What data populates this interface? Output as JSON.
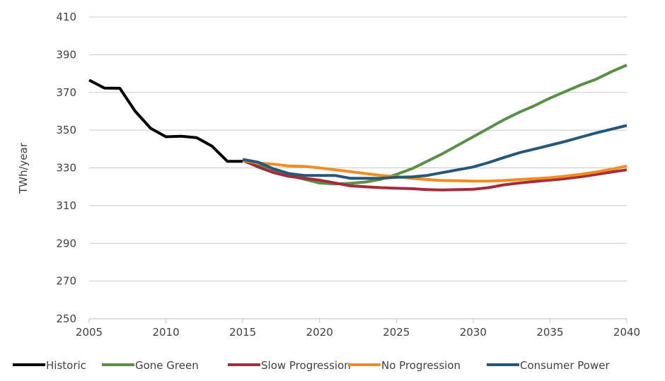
{
  "chart_data": {
    "type": "line",
    "title": "",
    "xlabel": "",
    "ylabel": "TWh/year",
    "xlim": [
      2005,
      2040
    ],
    "ylim": [
      250,
      410
    ],
    "x_ticks": [
      2005,
      2010,
      2015,
      2020,
      2025,
      2030,
      2035,
      2040
    ],
    "y_ticks": [
      250,
      270,
      290,
      310,
      330,
      350,
      370,
      390,
      410
    ],
    "grid": "horizontal",
    "legend_position": "bottom",
    "series": [
      {
        "name": "Historic",
        "color": "#000000",
        "x": [
          2005,
          2006,
          2007,
          2008,
          2009,
          2010,
          2011,
          2012,
          2013,
          2014,
          2015
        ],
        "y": [
          376.5,
          372.3,
          372.2,
          360.0,
          351.0,
          346.5,
          346.8,
          346.0,
          341.5,
          333.5,
          333.5
        ]
      },
      {
        "name": "Gone Green",
        "color": "#5a9045",
        "x": [
          2015,
          2016,
          2017,
          2018,
          2019,
          2020,
          2021,
          2022,
          2023,
          2024,
          2025,
          2026,
          2027,
          2028,
          2029,
          2030,
          2031,
          2032,
          2033,
          2034,
          2035,
          2036,
          2037,
          2038,
          2039,
          2040
        ],
        "y": [
          334.0,
          332.0,
          329.0,
          326.0,
          324.0,
          322.0,
          321.5,
          321.8,
          322.5,
          324.0,
          326.5,
          329.5,
          333.5,
          337.5,
          342.0,
          346.5,
          351.0,
          355.5,
          359.5,
          363.0,
          367.0,
          370.5,
          374.0,
          377.0,
          381.0,
          384.5
        ]
      },
      {
        "name": "Slow Progression",
        "color": "#a52a3a",
        "x": [
          2015,
          2016,
          2017,
          2018,
          2019,
          2020,
          2021,
          2022,
          2023,
          2024,
          2025,
          2026,
          2027,
          2028,
          2029,
          2030,
          2031,
          2032,
          2033,
          2034,
          2035,
          2036,
          2037,
          2038,
          2039,
          2040
        ],
        "y": [
          334.0,
          330.5,
          327.5,
          325.5,
          324.5,
          323.5,
          322.0,
          320.5,
          320.0,
          319.5,
          319.2,
          319.0,
          318.5,
          318.3,
          318.5,
          318.7,
          319.5,
          321.0,
          322.0,
          322.8,
          323.5,
          324.3,
          325.3,
          326.5,
          327.8,
          329.0
        ]
      },
      {
        "name": "No Progression",
        "color": "#f28c1e",
        "x": [
          2015,
          2016,
          2017,
          2018,
          2019,
          2020,
          2021,
          2022,
          2023,
          2024,
          2025,
          2026,
          2027,
          2028,
          2029,
          2030,
          2031,
          2032,
          2033,
          2034,
          2035,
          2036,
          2037,
          2038,
          2039,
          2040
        ],
        "y": [
          334.0,
          332.5,
          332.0,
          331.0,
          330.8,
          330.0,
          329.0,
          328.0,
          327.0,
          326.0,
          325.3,
          324.5,
          323.8,
          323.3,
          323.2,
          323.0,
          323.0,
          323.3,
          323.8,
          324.3,
          324.8,
          325.6,
          326.6,
          327.8,
          329.3,
          331.0
        ]
      },
      {
        "name": "Consumer Power",
        "color": "#23587a",
        "x": [
          2015,
          2016,
          2017,
          2018,
          2019,
          2020,
          2021,
          2022,
          2023,
          2024,
          2025,
          2026,
          2027,
          2028,
          2029,
          2030,
          2031,
          2032,
          2033,
          2034,
          2035,
          2036,
          2037,
          2038,
          2039,
          2040
        ],
        "y": [
          334.5,
          333.0,
          329.5,
          327.0,
          326.0,
          326.0,
          326.0,
          324.5,
          324.5,
          324.5,
          325.0,
          325.2,
          326.0,
          327.5,
          329.0,
          330.5,
          332.8,
          335.5,
          338.0,
          340.0,
          342.0,
          344.0,
          346.3,
          348.5,
          350.5,
          352.5
        ]
      }
    ]
  }
}
